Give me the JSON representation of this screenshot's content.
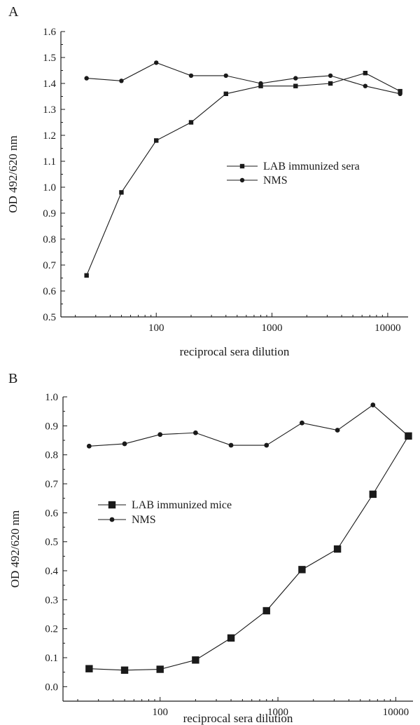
{
  "chart_data": [
    {
      "type": "line",
      "panel_label": "A",
      "xlabel": "reciprocal sera dilution",
      "ylabel": "OD 492/620 nm",
      "xscale": "log",
      "xlim": [
        15,
        15000
      ],
      "ylim": [
        0.5,
        1.6
      ],
      "yticks": [
        "0.5",
        "0.6",
        "0.7",
        "0.8",
        "0.9",
        "1.0",
        "1.1",
        "1.2",
        "1.3",
        "1.4",
        "1.5",
        "1.6"
      ],
      "xticks": [
        "100",
        "1000",
        "10000"
      ],
      "grid": false,
      "legend_position": "center-right",
      "x": [
        25,
        50,
        100,
        200,
        400,
        800,
        1600,
        3200,
        6400,
        12800
      ],
      "series": [
        {
          "name": "LAB immunized sera",
          "marker": "square",
          "marker_size": "small",
          "color": "#1a1a1a",
          "values": [
            0.66,
            0.98,
            1.18,
            1.25,
            1.36,
            1.39,
            1.39,
            1.4,
            1.44,
            1.37
          ]
        },
        {
          "name": "NMS",
          "marker": "circle",
          "marker_size": "small",
          "color": "#1a1a1a",
          "values": [
            1.42,
            1.41,
            1.48,
            1.43,
            1.43,
            1.4,
            1.42,
            1.43,
            1.39,
            1.36
          ]
        }
      ]
    },
    {
      "type": "line",
      "panel_label": "B",
      "xlabel": "reciprocal sera dilution",
      "ylabel": "OD 492/620 nm",
      "xscale": "log",
      "xlim": [
        15,
        14000
      ],
      "ylim": [
        -0.05,
        1.0
      ],
      "yticks": [
        "0.0",
        "0.1",
        "0.2",
        "0.3",
        "0.4",
        "0.5",
        "0.6",
        "0.7",
        "0.8",
        "0.9",
        "1.0"
      ],
      "xticks": [
        "100",
        "1000",
        "10000"
      ],
      "grid": false,
      "legend_position": "center-left",
      "x": [
        25,
        50,
        100,
        200,
        400,
        800,
        1600,
        3200,
        6400,
        12800
      ],
      "series": [
        {
          "name": "LAB immunized mice",
          "marker": "square",
          "marker_size": "large",
          "color": "#1a1a1a",
          "values": [
            0.062,
            0.057,
            0.06,
            0.092,
            0.168,
            0.262,
            0.404,
            0.475,
            0.664,
            0.865
          ]
        },
        {
          "name": "NMS",
          "marker": "circle",
          "marker_size": "small",
          "color": "#1a1a1a",
          "values": [
            0.83,
            0.838,
            0.87,
            0.876,
            0.833,
            0.833,
            0.91,
            0.885,
            0.972,
            0.865
          ]
        }
      ]
    }
  ]
}
